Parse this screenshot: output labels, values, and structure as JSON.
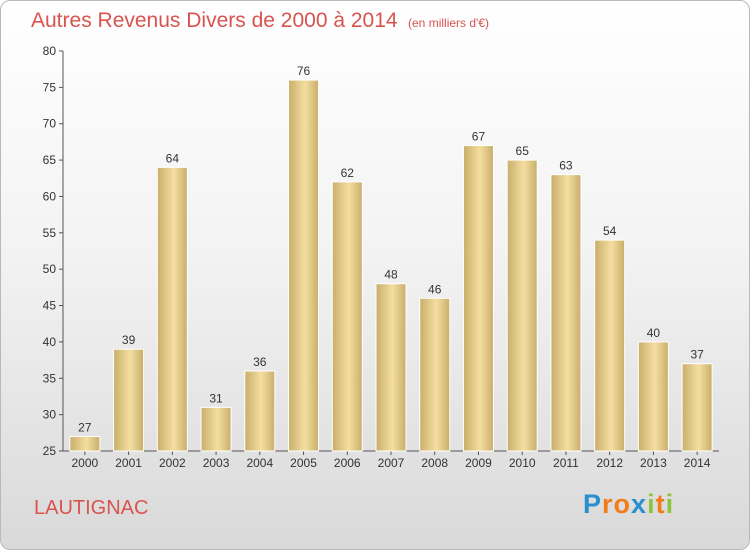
{
  "header": {
    "title": "Autres Revenus Divers de 2000 à 2014",
    "subtitle": "(en milliers d'€)"
  },
  "commune": "LAUTIGNAC",
  "logo": {
    "letters": [
      {
        "ch": "P",
        "color": "#2a8fd1"
      },
      {
        "ch": "r",
        "color": "#f07d1a"
      },
      {
        "ch": "o",
        "color": "#f07d1a"
      },
      {
        "ch": "x",
        "color": "#2a8fd1"
      },
      {
        "ch": "i",
        "color": "#8cc63f"
      },
      {
        "ch": "t",
        "color": "#f07d1a"
      },
      {
        "ch": "i",
        "color": "#8cc63f"
      }
    ]
  },
  "colors": {
    "title": "#d9534f",
    "bar_light": "#f4dea0",
    "bar_dark": "#c9ae6a",
    "axis": "#555555"
  },
  "chart_data": {
    "type": "bar",
    "categories": [
      "2000",
      "2001",
      "2002",
      "2003",
      "2004",
      "2005",
      "2006",
      "2007",
      "2008",
      "2009",
      "2010",
      "2011",
      "2012",
      "2013",
      "2014"
    ],
    "values": [
      27,
      39,
      64,
      31,
      36,
      76,
      62,
      48,
      46,
      67,
      65,
      63,
      54,
      40,
      37
    ],
    "ylim": [
      25,
      80
    ],
    "yticks": [
      25,
      30,
      35,
      40,
      45,
      50,
      55,
      60,
      65,
      70,
      75,
      80
    ],
    "grid": false,
    "data_labels": true
  }
}
